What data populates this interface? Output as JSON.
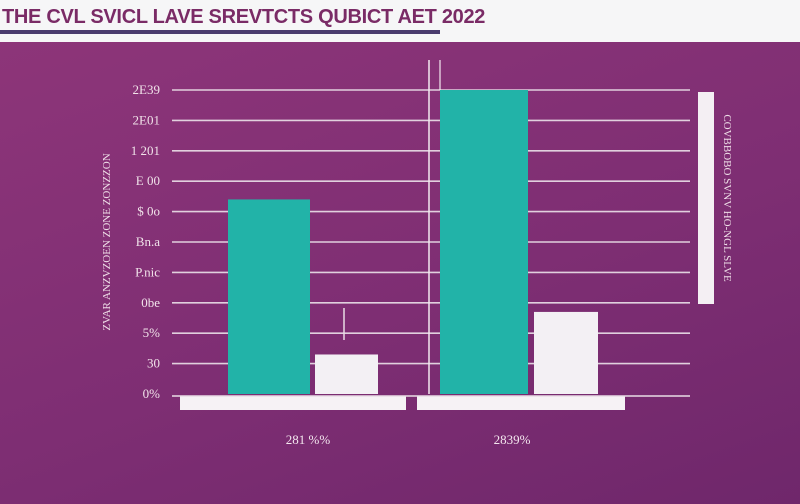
{
  "header": {
    "title": "THE CVL SVICL LAVE SREVTCTS QUBICT AET 2022"
  },
  "chart_data": {
    "type": "bar",
    "title": "THE CVL SVICL LAVE SREVTCTS QUBICT AET 2022",
    "ylabel": "ZVAR ANZVZOEN ZONE ZONZZON",
    "right_label": "COVBBOBO SVNV HO-NGL SLVE",
    "ylim": [
      0,
      11
    ],
    "y_ticks": [
      {
        "value": 0,
        "label": "0%"
      },
      {
        "value": 1,
        "label": "30"
      },
      {
        "value": 2,
        "label": "5%"
      },
      {
        "value": 3,
        "label": "0be"
      },
      {
        "value": 4,
        "label": "P.nic"
      },
      {
        "value": 5,
        "label": "Bn.a"
      },
      {
        "value": 6,
        "label": "$ 0o"
      },
      {
        "value": 7,
        "label": "E 00"
      },
      {
        "value": 8,
        "label": "1 201"
      },
      {
        "value": 9,
        "label": "2E01"
      },
      {
        "value": 10,
        "label": "2E39"
      }
    ],
    "categories": [
      "281 %%",
      "2839%"
    ],
    "series": [
      {
        "values": [
          6.4,
          10.0
        ],
        "color": "#22b3a8"
      },
      {
        "values": [
          1.3,
          2.7
        ],
        "color": "#f3f0f4"
      }
    ],
    "grid": true
  }
}
